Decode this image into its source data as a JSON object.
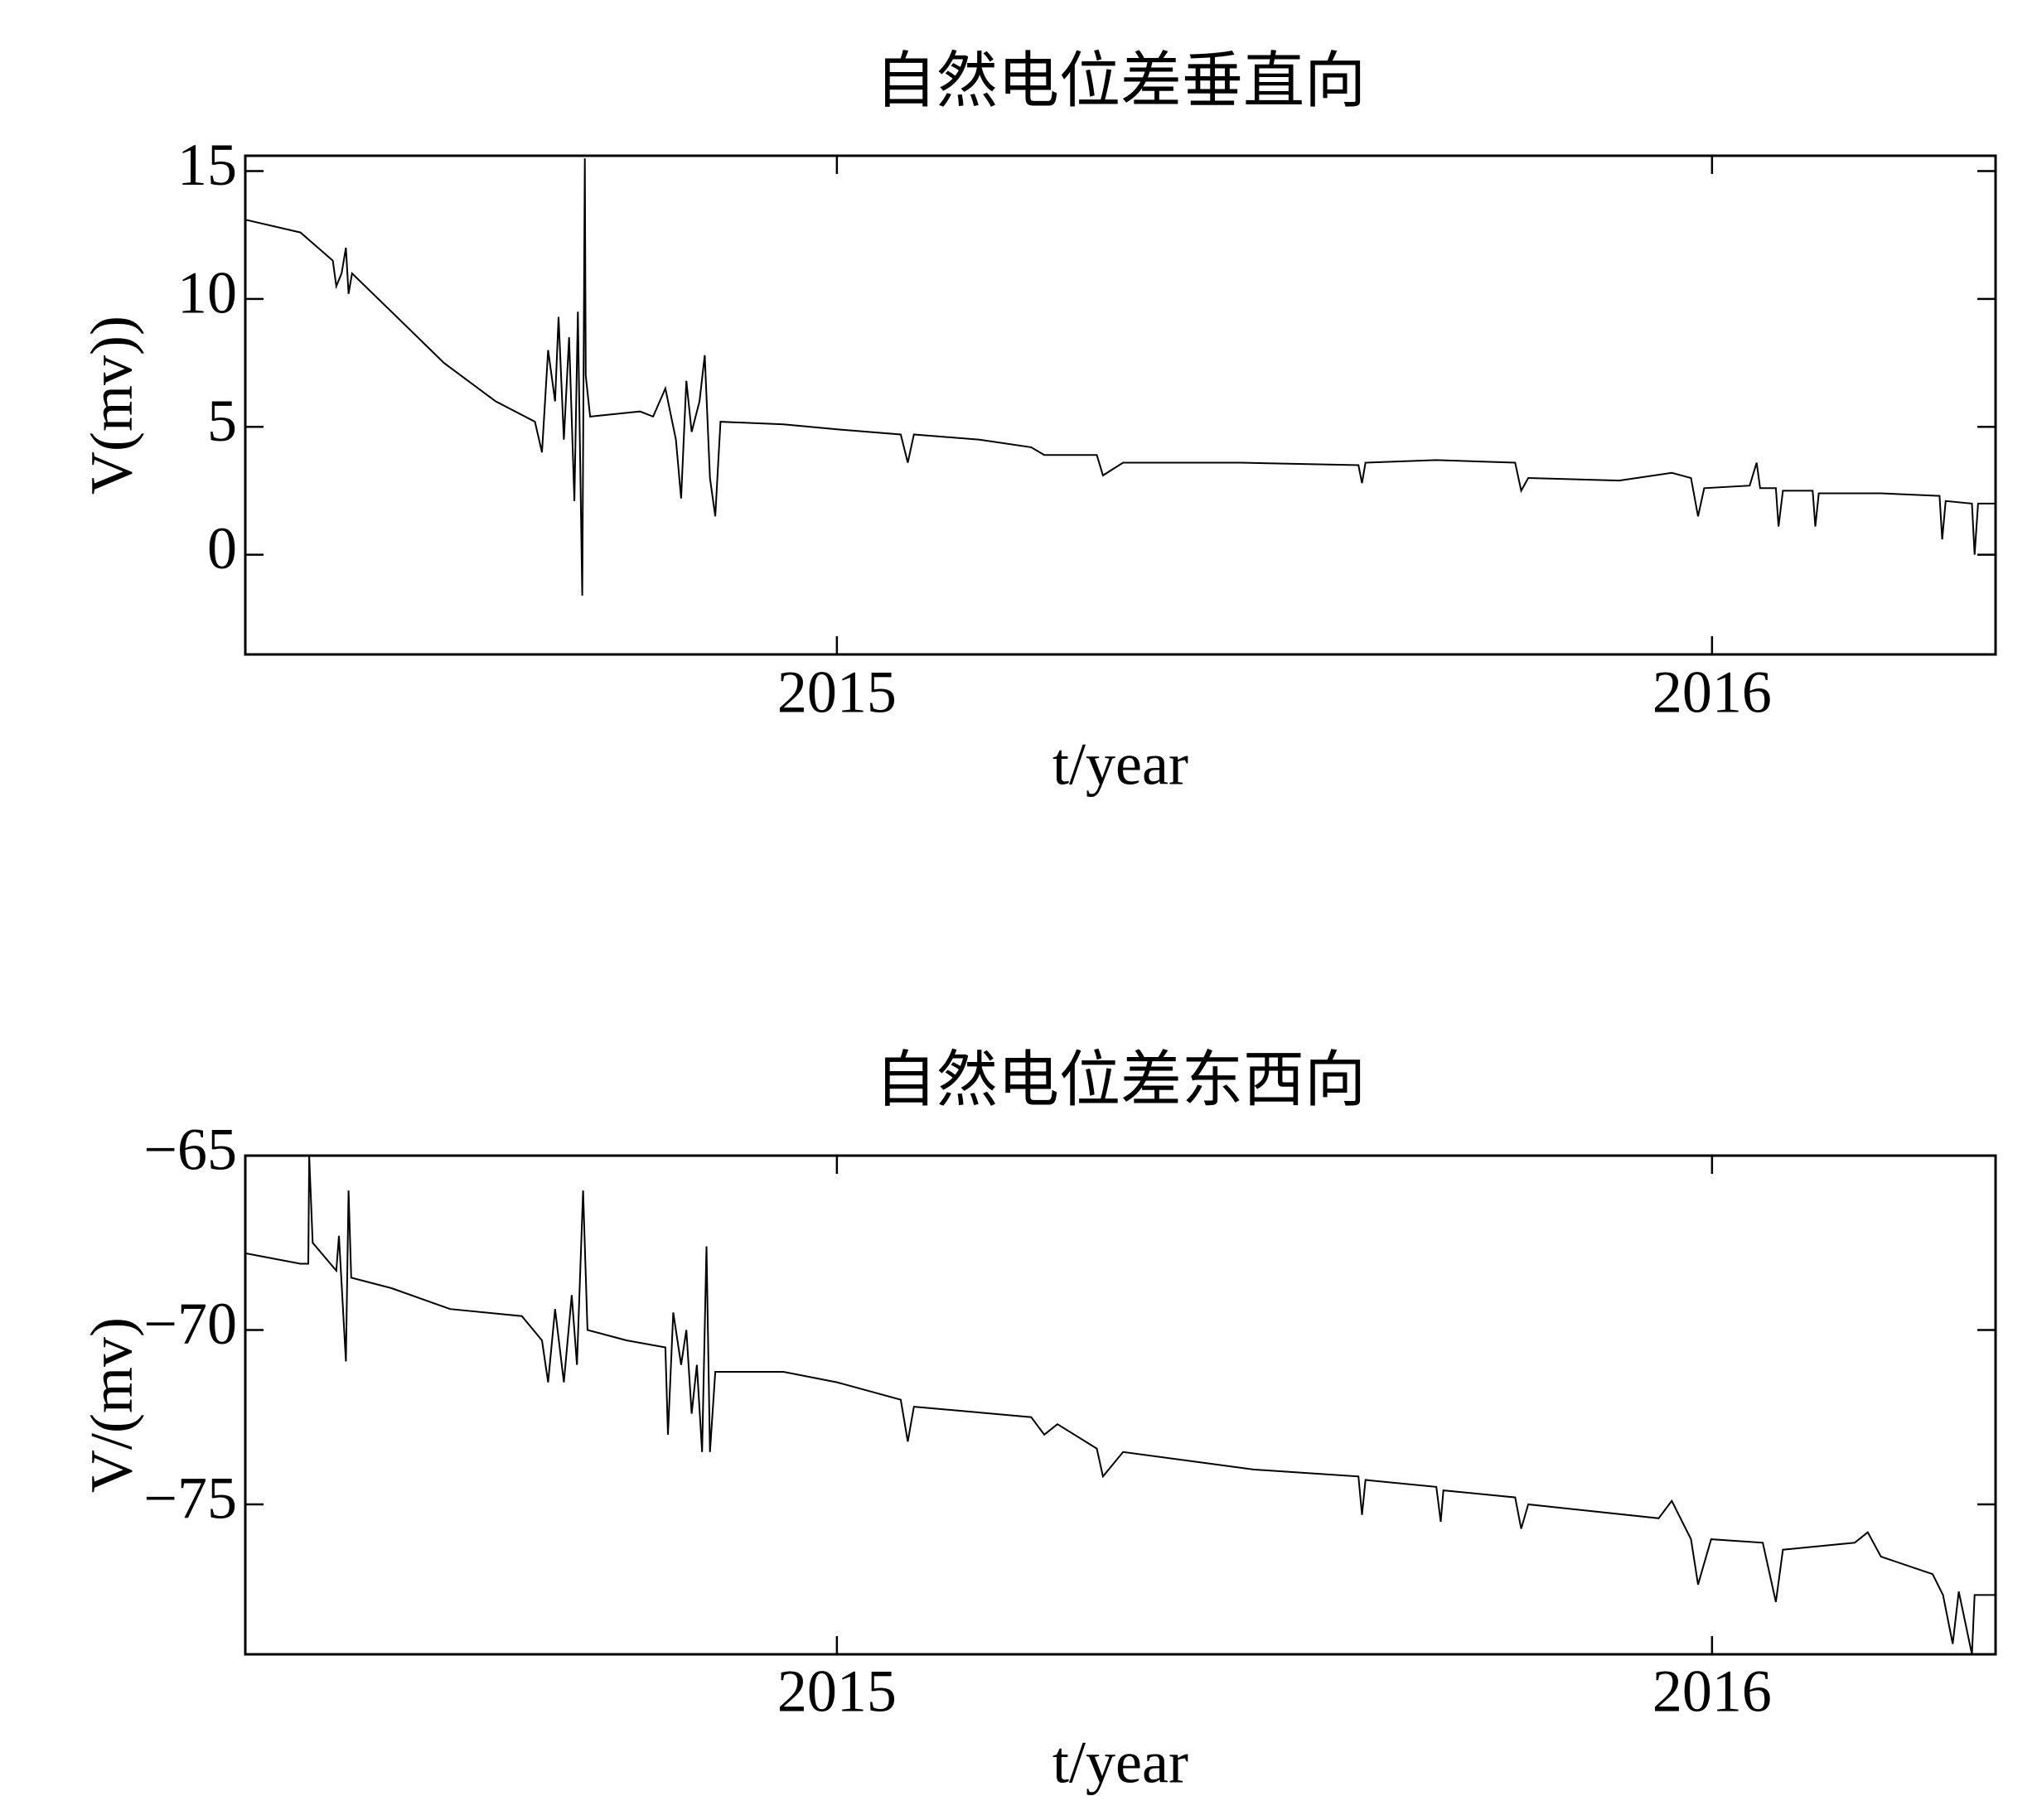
{
  "chart_data": [
    {
      "type": "line",
      "title": "自然电位差垂直向",
      "x_label": "t/year",
      "y_label": "V(mv))",
      "color": "#000000",
      "x": [
        2014.324,
        2014.387,
        2014.424,
        2014.428,
        2014.434,
        2014.439,
        2014.442,
        2014.446,
        2014.491,
        2014.551,
        2014.61,
        2014.655,
        2014.663,
        2014.67,
        2014.678,
        2014.682,
        2014.688,
        2014.694,
        2014.7,
        2014.704,
        2014.709,
        2014.712,
        2014.713,
        2014.718,
        2014.775,
        2014.79,
        2014.804,
        2014.816,
        2014.822,
        2014.828,
        2014.834,
        2014.843,
        2014.849,
        2014.855,
        2014.861,
        2014.867,
        2014.939,
        2015.0,
        2015.073,
        2015.081,
        2015.088,
        2015.163,
        2015.222,
        2015.237,
        2015.297,
        2015.304,
        2015.327,
        2015.461,
        2015.596,
        2015.6,
        2015.604,
        2015.685,
        2015.775,
        2015.782,
        2015.79,
        2015.894,
        2015.954,
        2015.976,
        2015.984,
        2015.991,
        2016.043,
        2016.051,
        2016.055,
        2016.073,
        2016.076,
        2016.081,
        2016.115,
        2016.118,
        2016.122,
        2016.193,
        2016.26,
        2016.263,
        2016.267,
        2016.297,
        2016.3,
        2016.304,
        2016.324
      ],
      "values": [
        13.1,
        12.6,
        11.5,
        10.5,
        11,
        12,
        10.2,
        11,
        9.5,
        7.5,
        6,
        5.2,
        4,
        8,
        6,
        9.3,
        4.5,
        8.5,
        2.1,
        9.5,
        -1.6,
        15.5,
        7,
        5.4,
        5.6,
        5.4,
        6.5,
        4.5,
        2.2,
        6.8,
        4.8,
        6,
        7.8,
        3,
        1.5,
        5.2,
        5.1,
        4.9,
        4.7,
        3.6,
        4.7,
        4.5,
        4.2,
        3.9,
        3.9,
        3.1,
        3.6,
        3.6,
        3.5,
        2.8,
        3.6,
        3.7,
        3.6,
        2.5,
        3,
        2.9,
        3.2,
        3,
        1.5,
        2.6,
        2.7,
        3.6,
        2.6,
        2.6,
        1.1,
        2.5,
        2.5,
        1.1,
        2.4,
        2.4,
        2.3,
        0.6,
        2.1,
        2,
        0,
        2,
        2
      ],
      "xlim": [
        2014.324,
        2016.324
      ],
      "xticks": [
        2015,
        2016
      ],
      "ylim": [
        -3.9,
        15.6
      ],
      "yticks": [
        0,
        5,
        10,
        15
      ]
    },
    {
      "type": "line",
      "title": "自然电位差东西向",
      "x_label": "t/year",
      "y_label": "V/(mv)",
      "color": "#000000",
      "x": [
        2014.324,
        2014.387,
        2014.396,
        2014.397,
        2014.401,
        2014.428,
        2014.431,
        2014.439,
        2014.442,
        2014.445,
        2014.491,
        2014.558,
        2014.64,
        2014.663,
        2014.67,
        2014.678,
        2014.688,
        2014.697,
        2014.703,
        2014.71,
        2014.715,
        2014.76,
        2014.804,
        2014.807,
        2014.813,
        2014.822,
        2014.828,
        2014.834,
        2014.84,
        2014.846,
        2014.851,
        2014.855,
        2014.861,
        2014.939,
        2015.0,
        2015.073,
        2015.081,
        2015.088,
        2015.222,
        2015.237,
        2015.252,
        2015.297,
        2015.304,
        2015.327,
        2015.476,
        2015.596,
        2015.6,
        2015.604,
        2015.685,
        2015.69,
        2015.693,
        2015.775,
        2015.782,
        2015.79,
        2015.939,
        2015.954,
        2015.976,
        2015.984,
        2015.999,
        2016.058,
        2016.073,
        2016.081,
        2016.163,
        2016.178,
        2016.193,
        2016.252,
        2016.264,
        2016.275,
        2016.282,
        2016.297,
        2016.3,
        2016.324
      ],
      "values": [
        -67.8,
        -68.1,
        -68.1,
        -65,
        -67.5,
        -68.3,
        -67.3,
        -70.9,
        -66,
        -68.5,
        -68.8,
        -69.4,
        -69.6,
        -70.3,
        -71.5,
        -69.4,
        -71.5,
        -69,
        -71,
        -66,
        -70,
        -70.3,
        -70.5,
        -73,
        -69.5,
        -71,
        -70,
        -72.4,
        -71,
        -73.5,
        -67.6,
        -73.5,
        -71.2,
        -71.2,
        -71.5,
        -72,
        -73.2,
        -72.2,
        -72.5,
        -73,
        -72.7,
        -73.4,
        -74.2,
        -73.5,
        -74,
        -74.2,
        -75.3,
        -74.3,
        -74.5,
        -75.5,
        -74.6,
        -74.8,
        -75.7,
        -75,
        -75.4,
        -74.9,
        -76,
        -77.3,
        -76,
        -76.1,
        -77.8,
        -76.3,
        -76.1,
        -75.8,
        -76.5,
        -77,
        -77.6,
        -79,
        -77.5,
        -79.3,
        -77.6,
        -77.6
      ],
      "xlim": [
        2014.324,
        2016.324
      ],
      "xticks": [
        2015,
        2016
      ],
      "ylim": [
        -79.3,
        -65
      ],
      "yticks": [
        {
          "value": -65,
          "label": "−65"
        },
        {
          "value": -70,
          "label": "−70"
        },
        {
          "value": -75,
          "label": "−75"
        }
      ]
    }
  ]
}
